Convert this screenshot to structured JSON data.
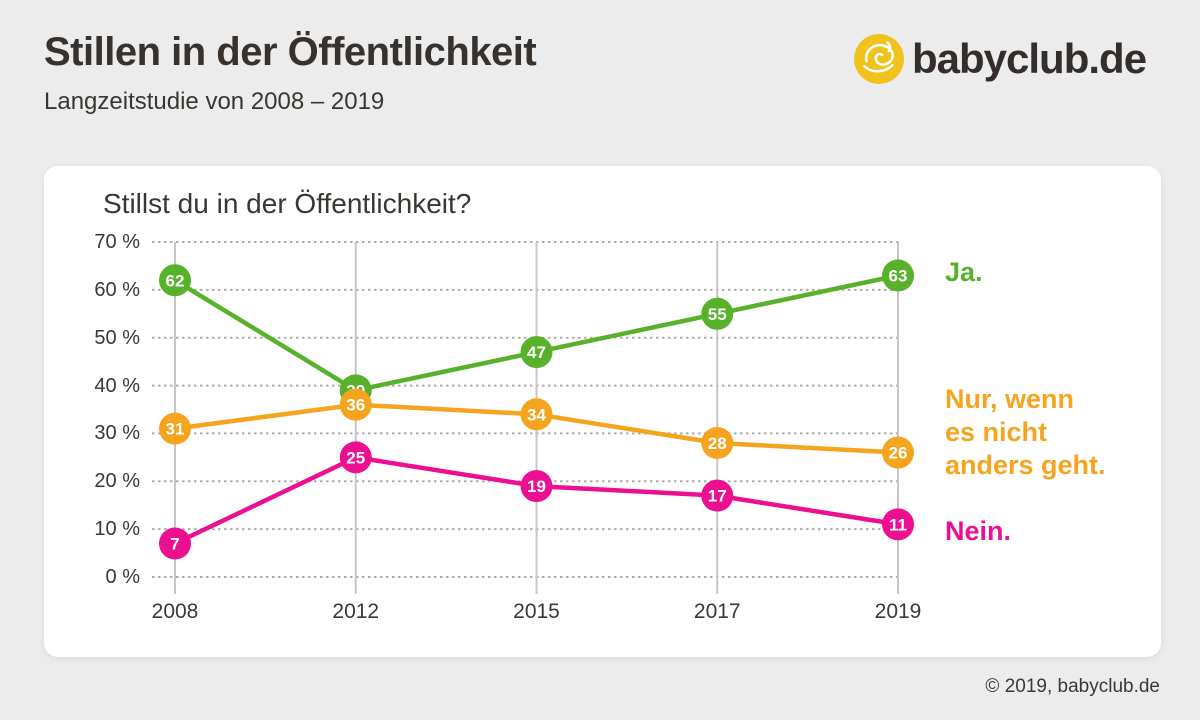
{
  "header": {
    "title": "Stillen in der Öffentlichkeit",
    "subtitle": "Langzeitstudie von 2008 – 2019",
    "logo_text": "babyclub.de",
    "logo_color": "#efc31b"
  },
  "chart_data": {
    "type": "line",
    "title": "Stillst du in der Öffentlichkeit?",
    "categories": [
      "2008",
      "2012",
      "2015",
      "2017",
      "2019"
    ],
    "series": [
      {
        "name": "Ja.",
        "legend_lines": [
          "Ja."
        ],
        "color": "#58b12a",
        "values": [
          62,
          39,
          47,
          55,
          63
        ]
      },
      {
        "name": "Nur, wenn es nicht anders geht.",
        "legend_lines": [
          "Nur, wenn",
          "es nicht",
          "anders geht."
        ],
        "color": "#f4a41d",
        "values": [
          31,
          36,
          34,
          28,
          26
        ]
      },
      {
        "name": "Nein.",
        "legend_lines": [
          "Nein."
        ],
        "color": "#ec0f92",
        "values": [
          7,
          25,
          19,
          17,
          11
        ]
      }
    ],
    "ylim": [
      0,
      70
    ],
    "ytick_labels": [
      "70 %",
      "60 %",
      "50 %",
      "40 %",
      "30 %",
      "20 %",
      "10 %",
      "0 %"
    ],
    "xlabel": "",
    "ylabel": "",
    "grid": "horizontal dotted, vertical solid",
    "legend_position": "right",
    "point_labels": "values shown in colored circles on each data point"
  },
  "footer": {
    "copyright": "© 2019, babyclub.de"
  }
}
